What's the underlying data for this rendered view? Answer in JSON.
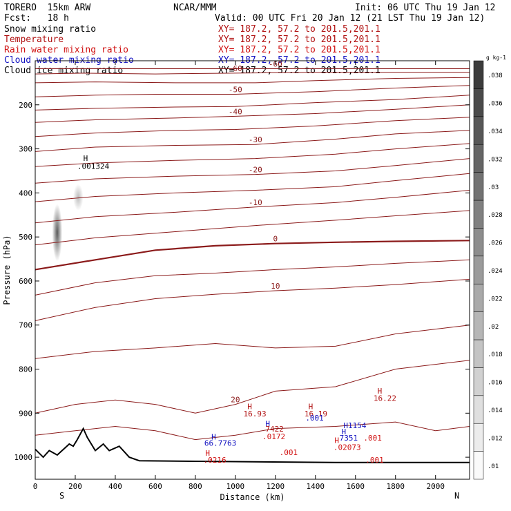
{
  "header": {
    "model": "TORERO  15km ARW",
    "center": "NCAR/MMM",
    "init": "Init: 06 UTC Thu 19 Jan 12",
    "fcst": "Fcst:   18 h",
    "valid": "Valid: 00 UTC Fri 20 Jan 12 (21 LST Thu 19 Jan 12)"
  },
  "fields": [
    {
      "name": "Snow mixing ratio",
      "xy": "XY= 187.2, 57.2 to 201.5,201.1",
      "color": "#000000"
    },
    {
      "name": "Temperature",
      "xy": "XY= 187.2, 57.2 to 201.5,201.1",
      "color": "#b01010"
    },
    {
      "name": "Rain water mixing ratio",
      "xy": "XY= 187.2, 57.2 to 201.5,201.1",
      "color": "#d01010"
    },
    {
      "name": "Cloud water mixing ratio",
      "xy": "XY= 187.2, 57.2 to 201.5,201.1",
      "color": "#1010c0"
    },
    {
      "name": "Cloud ice mixing ratio",
      "xy": "XY= 187.2, 57.2 to 201.5,201.1",
      "color": "#000000"
    }
  ],
  "chart_data": {
    "type": "cross-section contour",
    "xlabel": "Distance (km)",
    "ylabel": "Pressure (hPa)",
    "xlim": [
      0,
      2170
    ],
    "ylim": [
      1050,
      100
    ],
    "x_ticks": [
      0,
      200,
      400,
      600,
      800,
      1000,
      1200,
      1400,
      1600,
      1800,
      2000
    ],
    "y_ticks": [
      200,
      300,
      400,
      500,
      600,
      700,
      800,
      900,
      1000
    ],
    "x_end_labels": {
      "left": "S",
      "right": "N"
    },
    "colorbar": {
      "unit": "g kg-1",
      "levels": [
        0.01,
        0.012,
        0.014,
        0.016,
        0.018,
        0.02,
        0.022,
        0.024,
        0.026,
        0.028,
        0.03,
        0.032,
        0.034,
        0.036,
        0.038
      ],
      "labels": [
        ".01",
        ".012",
        ".014",
        ".016",
        ".018",
        ".02",
        ".022",
        ".024",
        ".026",
        ".028",
        ".03",
        ".032",
        ".034",
        ".036",
        ".038"
      ]
    },
    "temperature_contours": [
      {
        "value": -60,
        "label": "-60",
        "points": [
          [
            0,
            118
          ],
          [
            300,
            118
          ],
          [
            600,
            118
          ],
          [
            900,
            118
          ],
          [
            1200,
            118
          ],
          [
            1500,
            118
          ],
          [
            1800,
            118
          ],
          [
            2170,
            118
          ]
        ]
      },
      {
        "value": -60,
        "label": "-60",
        "points": [
          [
            0,
            130
          ],
          [
            250,
            128
          ],
          [
            600,
            130
          ],
          [
            1000,
            128
          ],
          [
            1400,
            126
          ],
          [
            1800,
            126
          ],
          [
            2170,
            126
          ]
        ]
      },
      {
        "value": -55,
        "label": "",
        "points": [
          [
            0,
            150
          ],
          [
            300,
            148
          ],
          [
            700,
            150
          ],
          [
            1100,
            150
          ],
          [
            1400,
            145
          ],
          [
            1800,
            140
          ],
          [
            2170,
            138
          ]
        ]
      },
      {
        "value": -50,
        "label": "-50",
        "points": [
          [
            0,
            182
          ],
          [
            300,
            178
          ],
          [
            600,
            176
          ],
          [
            1000,
            176
          ],
          [
            1400,
            170
          ],
          [
            1800,
            162
          ],
          [
            2170,
            156
          ]
        ]
      },
      {
        "value": -45,
        "label": "",
        "points": [
          [
            0,
            212
          ],
          [
            300,
            208
          ],
          [
            700,
            205
          ],
          [
            1000,
            204
          ],
          [
            1400,
            195
          ],
          [
            1800,
            188
          ],
          [
            2170,
            178
          ]
        ]
      },
      {
        "value": -40,
        "label": "-40",
        "points": [
          [
            0,
            240
          ],
          [
            300,
            234
          ],
          [
            700,
            230
          ],
          [
            1000,
            226
          ],
          [
            1400,
            220
          ],
          [
            1800,
            210
          ],
          [
            2170,
            200
          ]
        ]
      },
      {
        "value": -35,
        "label": "",
        "points": [
          [
            0,
            272
          ],
          [
            300,
            264
          ],
          [
            700,
            258
          ],
          [
            1000,
            256
          ],
          [
            1400,
            248
          ],
          [
            1800,
            236
          ],
          [
            2170,
            228
          ]
        ]
      },
      {
        "value": -30,
        "label": "-30",
        "points": [
          [
            0,
            306
          ],
          [
            300,
            296
          ],
          [
            700,
            292
          ],
          [
            1100,
            290
          ],
          [
            1500,
            278
          ],
          [
            1800,
            266
          ],
          [
            2170,
            258
          ]
        ]
      },
      {
        "value": -25,
        "label": "",
        "points": [
          [
            0,
            340
          ],
          [
            300,
            332
          ],
          [
            700,
            326
          ],
          [
            1100,
            322
          ],
          [
            1500,
            312
          ],
          [
            1800,
            300
          ],
          [
            2170,
            288
          ]
        ]
      },
      {
        "value": -20,
        "label": "-20",
        "points": [
          [
            0,
            378
          ],
          [
            300,
            368
          ],
          [
            700,
            362
          ],
          [
            1100,
            358
          ],
          [
            1500,
            350
          ],
          [
            1800,
            338
          ],
          [
            2170,
            322
          ]
        ]
      },
      {
        "value": -15,
        "label": "",
        "points": [
          [
            0,
            420
          ],
          [
            300,
            408
          ],
          [
            700,
            400
          ],
          [
            1100,
            394
          ],
          [
            1500,
            386
          ],
          [
            1800,
            372
          ],
          [
            2170,
            356
          ]
        ]
      },
      {
        "value": -10,
        "label": "-10",
        "points": [
          [
            0,
            468
          ],
          [
            300,
            454
          ],
          [
            700,
            444
          ],
          [
            1100,
            432
          ],
          [
            1500,
            422
          ],
          [
            1800,
            410
          ],
          [
            2170,
            394
          ]
        ]
      },
      {
        "value": -5,
        "label": "",
        "points": [
          [
            0,
            518
          ],
          [
            300,
            502
          ],
          [
            700,
            488
          ],
          [
            1100,
            474
          ],
          [
            1500,
            462
          ],
          [
            1800,
            452
          ],
          [
            2170,
            440
          ]
        ]
      },
      {
        "value": 0,
        "label": "0",
        "points": [
          [
            0,
            574
          ],
          [
            300,
            552
          ],
          [
            600,
            530
          ],
          [
            900,
            520
          ],
          [
            1200,
            515
          ],
          [
            1500,
            512
          ],
          [
            1800,
            510
          ],
          [
            2170,
            508
          ]
        ]
      },
      {
        "value": 5,
        "label": "",
        "points": [
          [
            0,
            632
          ],
          [
            300,
            604
          ],
          [
            600,
            588
          ],
          [
            900,
            582
          ],
          [
            1200,
            574
          ],
          [
            1500,
            568
          ],
          [
            1800,
            560
          ],
          [
            2170,
            552
          ]
        ]
      },
      {
        "value": 10,
        "label": "10",
        "points": [
          [
            0,
            690
          ],
          [
            300,
            660
          ],
          [
            600,
            640
          ],
          [
            900,
            630
          ],
          [
            1200,
            622
          ],
          [
            1500,
            616
          ],
          [
            1800,
            608
          ],
          [
            2170,
            596
          ]
        ]
      },
      {
        "value": 15,
        "label": "",
        "points": [
          [
            0,
            776
          ],
          [
            300,
            760
          ],
          [
            600,
            752
          ],
          [
            900,
            742
          ],
          [
            1200,
            752
          ],
          [
            1500,
            748
          ],
          [
            1800,
            720
          ],
          [
            2170,
            700
          ]
        ]
      },
      {
        "value": 20,
        "label": "20",
        "points": [
          [
            0,
            900
          ],
          [
            200,
            880
          ],
          [
            400,
            870
          ],
          [
            600,
            880
          ],
          [
            800,
            900
          ],
          [
            1000,
            880
          ],
          [
            1200,
            850
          ],
          [
            1500,
            840
          ],
          [
            1800,
            800
          ],
          [
            2170,
            780
          ]
        ]
      },
      {
        "value": 25,
        "label": "",
        "points": [
          [
            0,
            950
          ],
          [
            200,
            940
          ],
          [
            400,
            930
          ],
          [
            600,
            940
          ],
          [
            800,
            960
          ],
          [
            1000,
            950
          ],
          [
            1200,
            935
          ],
          [
            1500,
            930
          ],
          [
            1800,
            920
          ],
          [
            2000,
            940
          ],
          [
            2170,
            930
          ]
        ]
      }
    ],
    "annotations": [
      {
        "text": "H",
        "x": 240,
        "y": 327,
        "color": "#000000"
      },
      {
        "text": ".001324",
        "x": 210,
        "y": 345,
        "color": "#000000"
      },
      {
        "text": "H",
        "x": 1060,
        "y": 891,
        "color": "#b01010"
      },
      {
        "text": "16.93",
        "x": 1040,
        "y": 907,
        "color": "#b01010"
      },
      {
        "text": "H",
        "x": 1365,
        "y": 891,
        "color": "#b01010"
      },
      {
        "text": "16.19",
        "x": 1345,
        "y": 907,
        "color": "#b01010"
      },
      {
        "text": "H",
        "x": 1710,
        "y": 856,
        "color": "#b01010"
      },
      {
        "text": "16.22",
        "x": 1690,
        "y": 872,
        "color": "#b01010"
      },
      {
        "text": "H",
        "x": 880,
        "y": 960,
        "color": "#1010c0"
      },
      {
        "text": "66.7763",
        "x": 845,
        "y": 974,
        "color": "#1010c0"
      },
      {
        "text": "H",
        "x": 1150,
        "y": 930,
        "color": "#1010c0"
      },
      {
        "text": "H",
        "x": 1530,
        "y": 948,
        "color": "#1010c0"
      },
      {
        "text": "7351",
        "x": 1520,
        "y": 962,
        "color": "#1010c0"
      },
      {
        "text": ".001",
        "x": 1350,
        "y": 917,
        "color": "#1010c0"
      },
      {
        "text": "H1154",
        "x": 1540,
        "y": 934,
        "color": "#1010c0"
      },
      {
        "text": "7422",
        "x": 1150,
        "y": 942,
        "color": "#b01010"
      },
      {
        "text": ".0172",
        "x": 1135,
        "y": 959,
        "color": "#d01010"
      },
      {
        "text": ".001",
        "x": 1220,
        "y": 995,
        "color": "#d01010"
      },
      {
        "text": ".0216",
        "x": 840,
        "y": 1012,
        "color": "#d01010"
      },
      {
        "text": "H",
        "x": 850,
        "y": 997,
        "color": "#d01010"
      },
      {
        "text": ".02073",
        "x": 1490,
        "y": 983,
        "color": "#d01010"
      },
      {
        "text": "H",
        "x": 1495,
        "y": 968,
        "color": "#d01010"
      },
      {
        "text": ".001",
        "x": 1640,
        "y": 962,
        "color": "#d01010"
      },
      {
        "text": ".001",
        "x": 1650,
        "y": 1012,
        "color": "#d01010"
      }
    ],
    "terrain": [
      [
        0,
        982
      ],
      [
        40,
        1000
      ],
      [
        70,
        985
      ],
      [
        110,
        995
      ],
      [
        170,
        970
      ],
      [
        190,
        975
      ],
      [
        210,
        960
      ],
      [
        240,
        935
      ],
      [
        260,
        955
      ],
      [
        300,
        985
      ],
      [
        340,
        970
      ],
      [
        370,
        985
      ],
      [
        420,
        975
      ],
      [
        470,
        1000
      ],
      [
        520,
        1008
      ],
      [
        1000,
        1010
      ],
      [
        1500,
        1012
      ],
      [
        2170,
        1012
      ]
    ],
    "snow_cells": [
      {
        "x": 110,
        "p": 490,
        "dx": 25,
        "dp": 65,
        "alpha": 0.75
      },
      {
        "x": 215,
        "p": 410,
        "dx": 25,
        "dp": 30,
        "alpha": 0.3
      }
    ]
  }
}
